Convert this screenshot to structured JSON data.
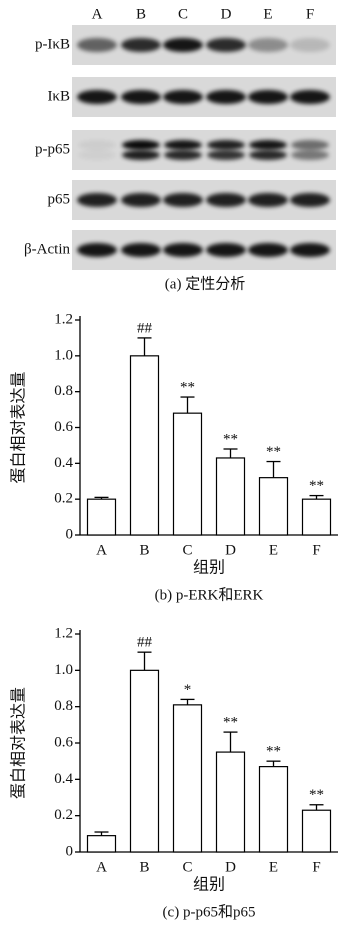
{
  "blot": {
    "lanes": [
      "A",
      "B",
      "C",
      "D",
      "E",
      "F"
    ],
    "rows": [
      "p-IκB",
      "IκB",
      "p-p65",
      "p65",
      "β-Actin"
    ],
    "caption": "(a)  定性分析"
  },
  "chart_data": [
    {
      "type": "bar",
      "caption": "(b)  p-ERK和ERK",
      "xlabel": "组别",
      "ylabel": "蛋白相对表达量",
      "categories": [
        "A",
        "B",
        "C",
        "D",
        "E",
        "F"
      ],
      "values": [
        0.2,
        1.0,
        0.68,
        0.43,
        0.32,
        0.2
      ],
      "errors": [
        0.01,
        0.1,
        0.09,
        0.05,
        0.09,
        0.02
      ],
      "annotations": [
        null,
        "##",
        "**",
        "**",
        "**",
        "**"
      ],
      "color": "#ffffff",
      "ylim": [
        0,
        1.2
      ],
      "yticks": [
        0,
        0.2,
        0.4,
        0.6,
        0.8,
        {
          "value": 1,
          "label": "1.0"
        },
        1.2
      ]
    },
    {
      "type": "bar",
      "caption": "(c)  p-p65和p65",
      "xlabel": "组别",
      "ylabel": "蛋白相对表达量",
      "categories": [
        "A",
        "B",
        "C",
        "D",
        "E",
        "F"
      ],
      "values": [
        0.09,
        1.0,
        0.81,
        0.55,
        0.47,
        0.23
      ],
      "errors": [
        0.02,
        0.1,
        0.03,
        0.11,
        0.03,
        0.03
      ],
      "annotations": [
        null,
        "##",
        "*",
        "**",
        "**",
        "**"
      ],
      "color": "#ffffff",
      "ylim": [
        0,
        1.2
      ],
      "yticks": [
        0,
        0.2,
        0.4,
        0.6,
        0.8,
        {
          "value": 1,
          "label": "1.0"
        },
        1.2
      ]
    }
  ]
}
